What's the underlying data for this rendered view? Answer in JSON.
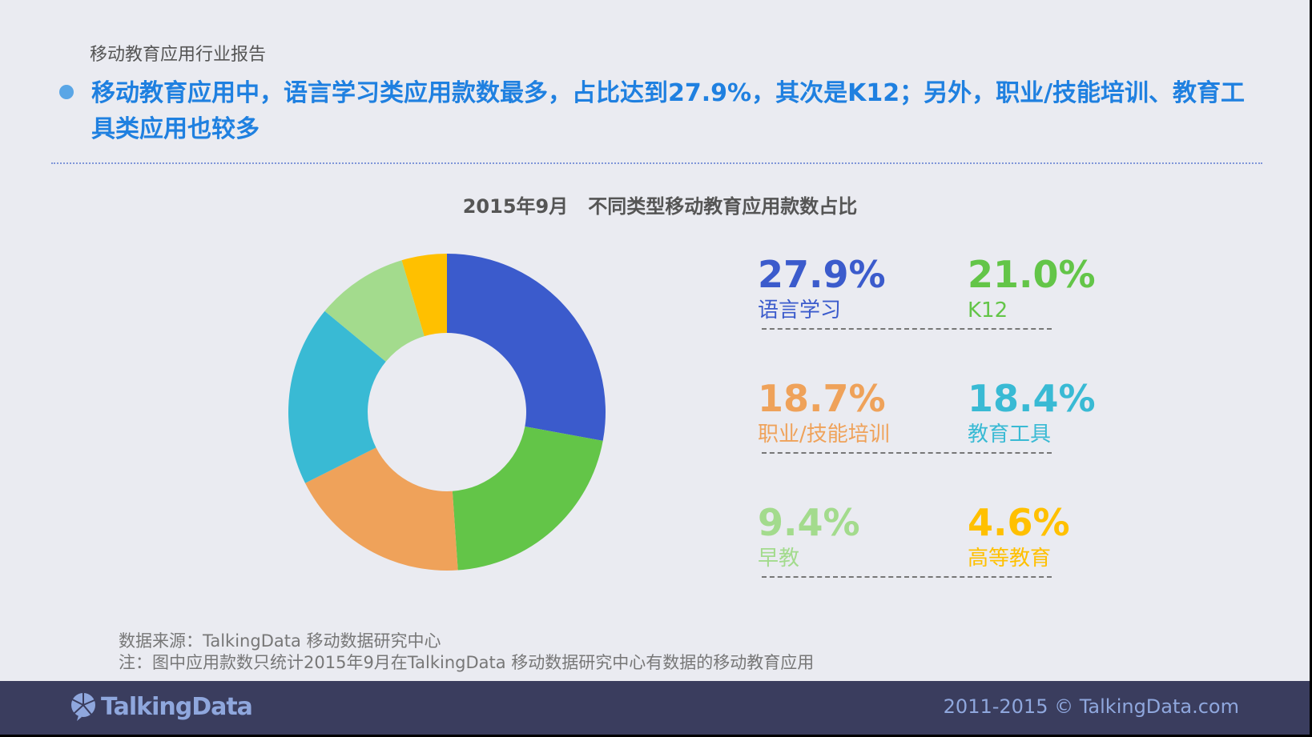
{
  "header": {
    "subtitle": "移动教育应用行业报告",
    "headline": "移动教育应用中，语言学习类应用款数最多，占比达到27.9%，其次是K12；另外，职业/技能培训、教育工具类应用也较多"
  },
  "chart_data": {
    "type": "pie",
    "title": "2015年9月   不同类型移动教育应用款数占比",
    "donut": true,
    "categories": [
      "语言学习",
      "K12",
      "职业/技能培训",
      "教育工具",
      "早教",
      "高等教育"
    ],
    "values": [
      27.9,
      21.0,
      18.7,
      18.4,
      9.4,
      4.6
    ],
    "labels": [
      "27.9%",
      "21.0%",
      "18.7%",
      "18.4%",
      "9.4%",
      "4.6%"
    ],
    "colors": [
      "#3B5BCC",
      "#63C548",
      "#EFA25A",
      "#39BAD4",
      "#A3DB8D",
      "#FFC000"
    ],
    "legend": "right"
  },
  "source": {
    "line1": "数据来源：TalkingData 移动数据研究中心",
    "line2": "注：图中应用款数只统计2015年9月在TalkingData  移动数据研究中心有数据的移动教育应用"
  },
  "footer": {
    "logo": "TalkingData",
    "copyright": "2011-2015 © TalkingData.com"
  }
}
